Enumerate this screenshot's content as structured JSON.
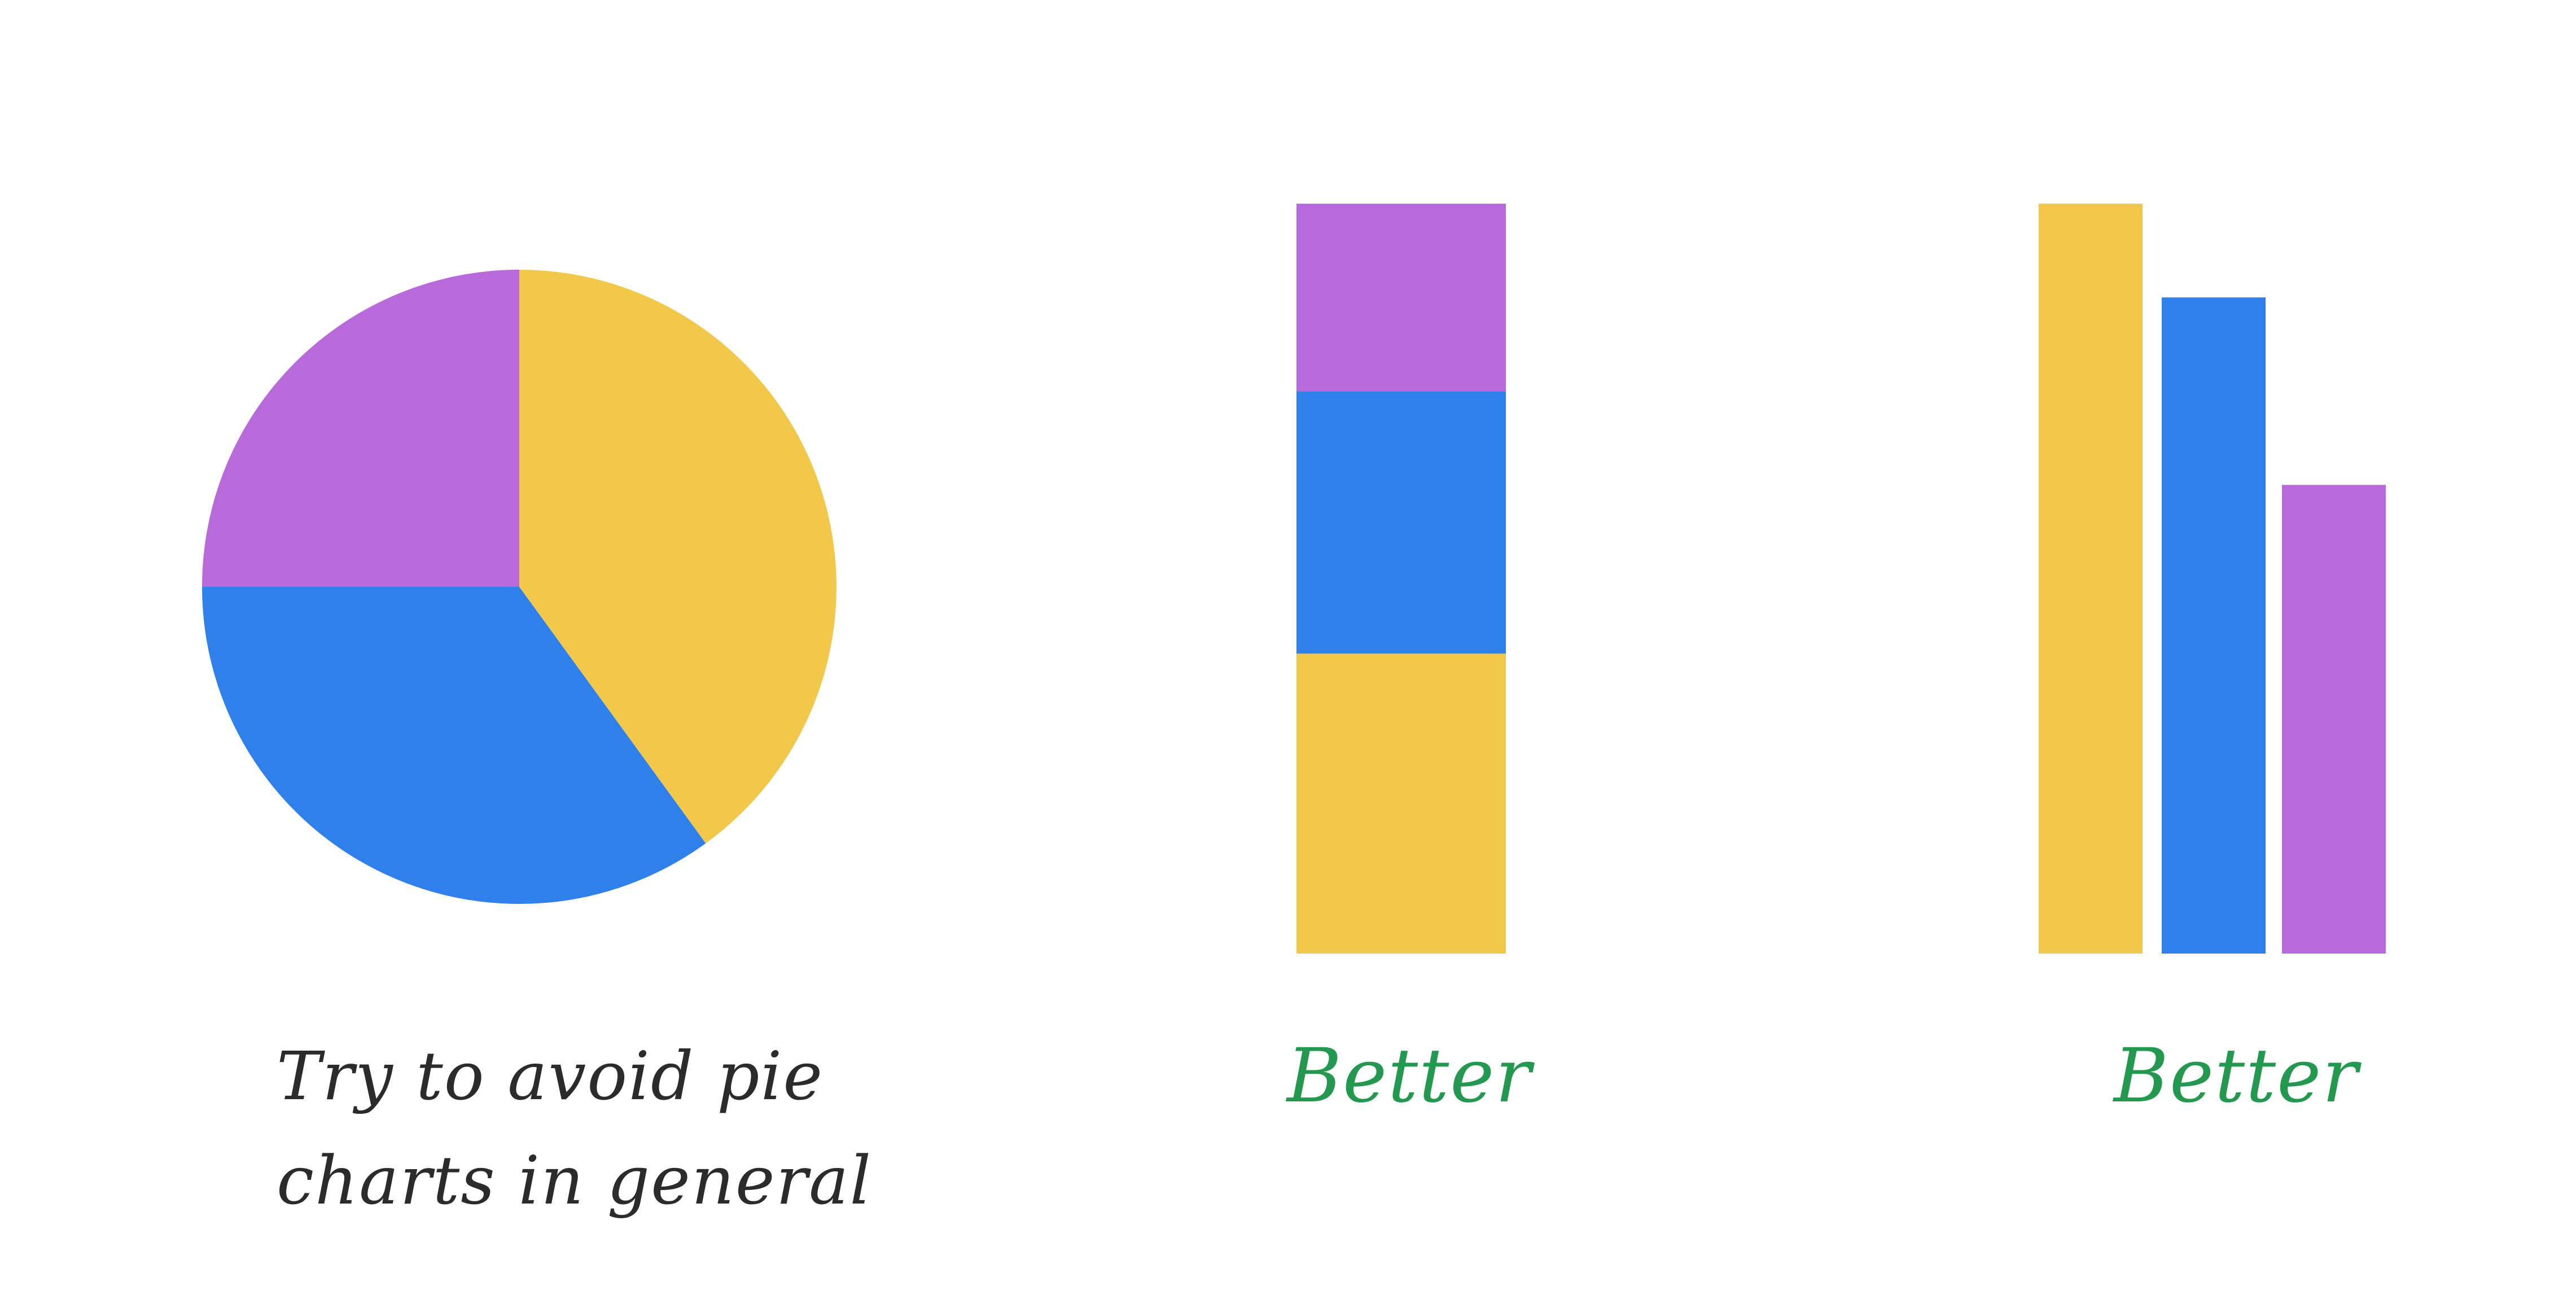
{
  "colors": {
    "yellow": "#F2C84B",
    "blue": "#3080EB",
    "purple": "#B86ADB",
    "caption_dark": "#2b2b2b",
    "caption_green": "#23984f"
  },
  "captions": {
    "pie_line1": "Try to avoid pie",
    "pie_line2": "charts in general",
    "stacked": "Better",
    "grouped": "Better"
  },
  "chart_data": [
    {
      "type": "pie",
      "slices": [
        {
          "value": 40,
          "color": "#F2C84B"
        },
        {
          "value": 35,
          "color": "#3080EB"
        },
        {
          "value": 25,
          "color": "#B86ADB"
        }
      ],
      "start_angle_deg": 0,
      "direction": "clockwise"
    },
    {
      "type": "bar",
      "stacked": true,
      "stack_order": "bottom-to-top",
      "segments": [
        {
          "value": 40,
          "color": "#F2C84B"
        },
        {
          "value": 35,
          "color": "#3080EB"
        },
        {
          "value": 25,
          "color": "#B86ADB"
        }
      ],
      "ylim": [
        0,
        100
      ]
    },
    {
      "type": "bar",
      "stacked": false,
      "values": [
        40,
        35,
        25
      ],
      "colors": [
        "#F2C84B",
        "#3080EB",
        "#B86ADB"
      ],
      "ylim": [
        0,
        40
      ]
    }
  ]
}
